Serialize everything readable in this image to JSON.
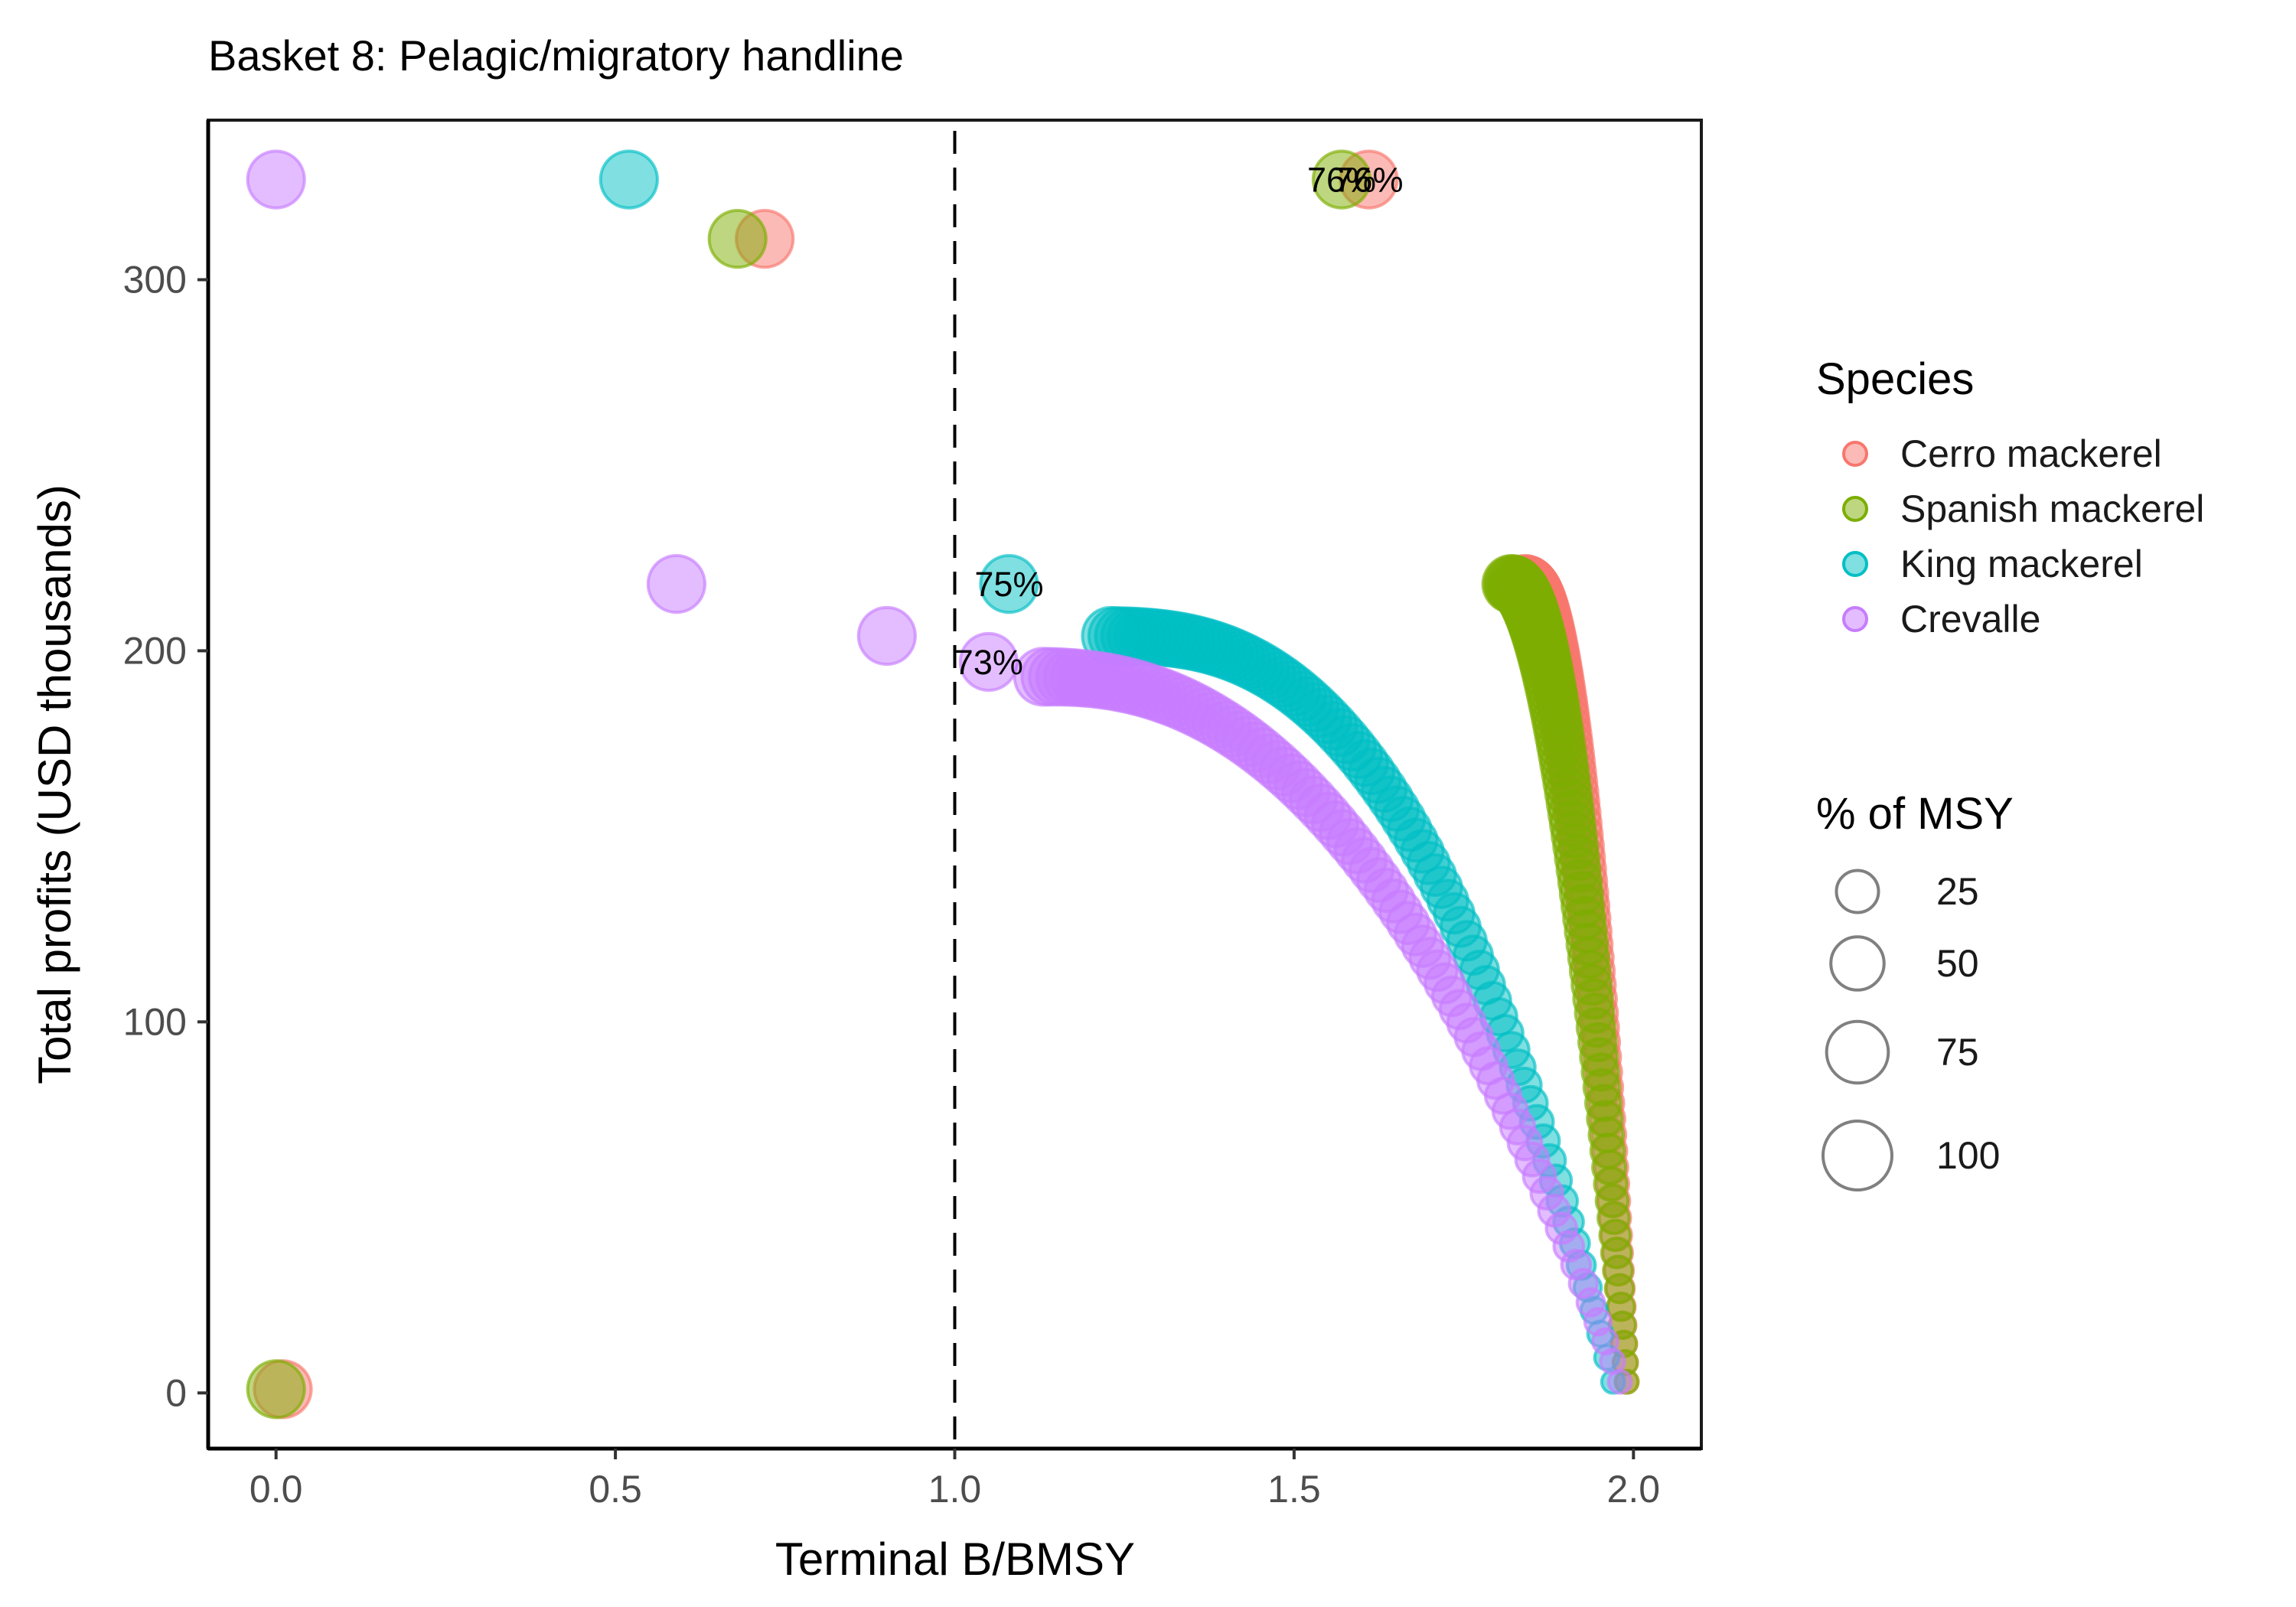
{
  "chart_data": {
    "type": "scatter",
    "title": "Basket 8: Pelagic/migratory handline",
    "xlabel": "Terminal B/BMSY",
    "ylabel": "Total profits (USD thousands)",
    "xlim": [
      -0.1,
      2.1
    ],
    "ylim": [
      -15,
      343
    ],
    "xticks": [
      0.0,
      0.5,
      1.0,
      1.5,
      2.0
    ],
    "xtick_labels": [
      "0.0",
      "0.5",
      "1.0",
      "1.5",
      "2.0"
    ],
    "yticks": [
      0,
      100,
      200,
      300
    ],
    "ytick_labels": [
      "0",
      "100",
      "200",
      "300"
    ],
    "reference_line": {
      "x": 1.0,
      "style": "dashed"
    },
    "grid": false,
    "legend_position": "right",
    "color_legend": {
      "title": "Species",
      "entries": [
        {
          "label": "Cerro mackerel",
          "color": "#F8766D"
        },
        {
          "label": "Spanish mackerel",
          "color": "#7CAE00"
        },
        {
          "label": "King mackerel",
          "color": "#00BFC4"
        },
        {
          "label": "Crevalle",
          "color": "#C77CFF"
        }
      ]
    },
    "size_legend": {
      "title": "% of MSY",
      "entries": [
        {
          "label": "25",
          "value": 25
        },
        {
          "label": "50",
          "value": 50
        },
        {
          "label": "75",
          "value": 75
        },
        {
          "label": "100",
          "value": 100
        }
      ]
    },
    "size_range": [
      2,
      100
    ],
    "series": [
      {
        "name": "Cerro mackerel",
        "color": "#F8766D",
        "points": [
          {
            "x": 0.01,
            "y": 1,
            "size": 60
          },
          {
            "x": 0.72,
            "y": 311,
            "size": 60
          },
          {
            "x": 1.61,
            "y": 327,
            "size": 60
          }
        ],
        "curve": {
          "x0": 1.84,
          "y0": 218,
          "x1": 1.99,
          "y1": 3,
          "k": 0.9,
          "n": 80,
          "size0": 60,
          "size1": 2
        }
      },
      {
        "name": "Spanish mackerel",
        "color": "#7CAE00",
        "points": [
          {
            "x": 0.0,
            "y": 1,
            "size": 60
          },
          {
            "x": 0.68,
            "y": 311,
            "size": 60
          },
          {
            "x": 1.57,
            "y": 327,
            "size": 60
          }
        ],
        "curve": {
          "x0": 1.82,
          "y0": 218,
          "x1": 1.99,
          "y1": 3,
          "k": 0.9,
          "n": 80,
          "size0": 60,
          "size1": 2
        }
      },
      {
        "name": "King mackerel",
        "color": "#00BFC4",
        "points": [
          {
            "x": 0.52,
            "y": 327,
            "size": 60
          },
          {
            "x": 1.08,
            "y": 218,
            "size": 60
          }
        ],
        "curve": {
          "x0": 1.23,
          "y0": 204,
          "x1": 1.97,
          "y1": 3,
          "k": 1.6,
          "n": 80,
          "size0": 60,
          "size1": 2
        }
      },
      {
        "name": "Crevalle",
        "color": "#C77CFF",
        "points": [
          {
            "x": 0.0,
            "y": 327,
            "size": 60
          },
          {
            "x": 0.59,
            "y": 218,
            "size": 60
          },
          {
            "x": 0.9,
            "y": 204,
            "size": 60
          },
          {
            "x": 1.05,
            "y": 197,
            "size": 60
          }
        ],
        "curve": {
          "x0": 1.13,
          "y0": 193,
          "x1": 1.98,
          "y1": 3,
          "k": 1.3,
          "n": 80,
          "size0": 60,
          "size1": 2
        }
      }
    ],
    "annotations": [
      {
        "text": "75%",
        "x": 1.08,
        "y": 218
      },
      {
        "text": "73%",
        "x": 1.05,
        "y": 197
      },
      {
        "text": "76%",
        "x": 1.57,
        "y": 327
      },
      {
        "text": "76%",
        "x": 1.61,
        "y": 327
      }
    ]
  }
}
